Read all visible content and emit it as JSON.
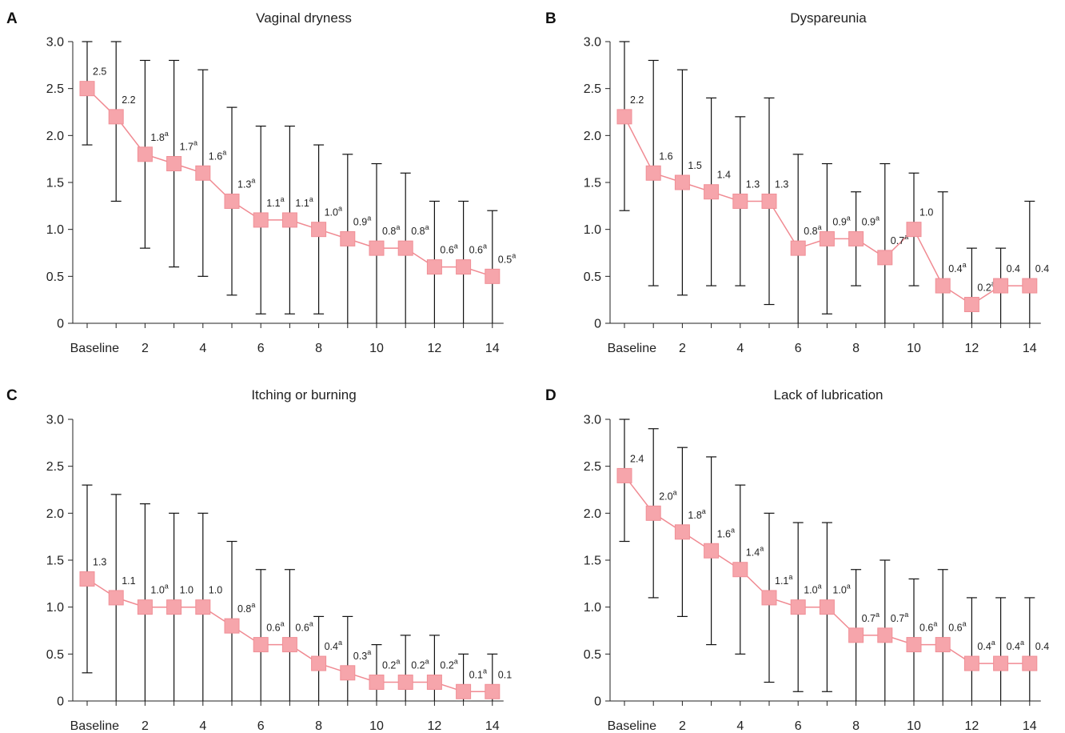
{
  "colors": {
    "marker_fill": "#f6a5ab",
    "line": "#f08a92",
    "error_bar": "#111111"
  },
  "chart_data": [
    {
      "type": "line",
      "letter": "A",
      "title": "Vaginal dryness",
      "x": [
        "Baseline",
        1,
        2,
        3,
        4,
        5,
        6,
        7,
        8,
        9,
        10,
        11,
        12,
        13,
        14
      ],
      "xticks": [
        {
          "x": "Baseline",
          "label": "Baseline"
        },
        {
          "x": 2,
          "label": "2"
        },
        {
          "x": 4,
          "label": "4"
        },
        {
          "x": 6,
          "label": "6"
        },
        {
          "x": 8,
          "label": "8"
        },
        {
          "x": 10,
          "label": "10"
        },
        {
          "x": 12,
          "label": "12"
        },
        {
          "x": 14,
          "label": "14"
        }
      ],
      "yticks": [
        "0",
        "0.5",
        "1.0",
        "1.5",
        "2.0",
        "2.5",
        "3.0"
      ],
      "ylim": [
        0,
        3.0
      ],
      "series": [
        {
          "values": [
            2.5,
            2.2,
            1.8,
            1.7,
            1.6,
            1.3,
            1.1,
            1.1,
            1.0,
            0.9,
            0.8,
            0.8,
            0.6,
            0.6,
            0.5
          ],
          "upper": [
            3.0,
            3.0,
            2.8,
            2.8,
            2.7,
            2.3,
            2.1,
            2.1,
            1.9,
            1.8,
            1.7,
            1.6,
            1.3,
            1.3,
            1.2
          ],
          "lower": [
            1.9,
            1.3,
            0.8,
            0.6,
            0.5,
            0.3,
            0.1,
            0.1,
            0.1,
            0.0,
            0.0,
            0.0,
            0.0,
            0.0,
            0.0
          ],
          "labels": [
            "2.5",
            "2.2",
            "1.8",
            "1.7",
            "1.6",
            "1.3",
            "1.1",
            "1.1",
            "1.0",
            "0.9",
            "0.8",
            "0.8",
            "0.6",
            "0.6",
            "0.5"
          ],
          "superscripts": [
            "",
            "",
            "a",
            "a",
            "a",
            "a",
            "a",
            "a",
            "a",
            "a",
            "a",
            "a",
            "a",
            "a",
            "a"
          ]
        }
      ]
    },
    {
      "type": "line",
      "letter": "B",
      "title": "Dyspareunia",
      "x": [
        "Baseline",
        1,
        2,
        3,
        4,
        5,
        6,
        7,
        8,
        9,
        10,
        11,
        12,
        13,
        14
      ],
      "xticks": [
        {
          "x": "Baseline",
          "label": "Baseline"
        },
        {
          "x": 2,
          "label": "2"
        },
        {
          "x": 4,
          "label": "4"
        },
        {
          "x": 6,
          "label": "6"
        },
        {
          "x": 8,
          "label": "8"
        },
        {
          "x": 10,
          "label": "10"
        },
        {
          "x": 12,
          "label": "12"
        },
        {
          "x": 14,
          "label": "14"
        }
      ],
      "yticks": [
        "0",
        "0.5",
        "1.0",
        "1.5",
        "2.0",
        "2.5",
        "3.0"
      ],
      "ylim": [
        0,
        3.0
      ],
      "series": [
        {
          "values": [
            2.2,
            1.6,
            1.5,
            1.4,
            1.3,
            1.3,
            0.8,
            0.9,
            0.9,
            0.7,
            1.0,
            0.4,
            0.2,
            0.4,
            0.4
          ],
          "upper": [
            3.0,
            2.8,
            2.7,
            2.4,
            2.2,
            2.4,
            1.8,
            1.7,
            1.4,
            1.7,
            1.6,
            1.4,
            0.8,
            0.8,
            1.3
          ],
          "lower": [
            1.2,
            0.4,
            0.3,
            0.4,
            0.4,
            0.2,
            0.0,
            0.1,
            0.4,
            0.0,
            0.4,
            0.0,
            0.0,
            0.0,
            0.0
          ],
          "labels": [
            "2.2",
            "1.6",
            "1.5",
            "1.4",
            "1.3",
            "1.3",
            "0.8",
            "0.9",
            "0.9",
            "0.7",
            "1.0",
            "0.4",
            "0.2",
            "0.4",
            "0.4"
          ],
          "superscripts": [
            "",
            "",
            "",
            "",
            "",
            "",
            "a",
            "a",
            "a",
            "a",
            "",
            "a",
            "a",
            "",
            ""
          ]
        }
      ]
    },
    {
      "type": "line",
      "letter": "C",
      "title": "Itching or burning",
      "x": [
        "Baseline",
        1,
        2,
        3,
        4,
        5,
        6,
        7,
        8,
        9,
        10,
        11,
        12,
        13,
        14
      ],
      "xticks": [
        {
          "x": "Baseline",
          "label": "Baseline"
        },
        {
          "x": 2,
          "label": "2"
        },
        {
          "x": 4,
          "label": "4"
        },
        {
          "x": 6,
          "label": "6"
        },
        {
          "x": 8,
          "label": "8"
        },
        {
          "x": 10,
          "label": "10"
        },
        {
          "x": 12,
          "label": "12"
        },
        {
          "x": 14,
          "label": "14"
        }
      ],
      "yticks": [
        "0",
        "0.5",
        "1.0",
        "1.5",
        "2.0",
        "2.5",
        "3.0"
      ],
      "ylim": [
        0,
        3.0
      ],
      "series": [
        {
          "values": [
            1.3,
            1.1,
            1.0,
            1.0,
            1.0,
            0.8,
            0.6,
            0.6,
            0.4,
            0.3,
            0.2,
            0.2,
            0.2,
            0.1,
            0.1
          ],
          "upper": [
            2.3,
            2.2,
            2.1,
            2.0,
            2.0,
            1.7,
            1.4,
            1.4,
            0.9,
            0.9,
            0.6,
            0.7,
            0.7,
            0.5,
            0.5
          ],
          "lower": [
            0.3,
            0.0,
            0.0,
            0.0,
            0.0,
            0.0,
            0.0,
            0.0,
            0.0,
            0.0,
            0.0,
            0.0,
            0.0,
            0.0,
            0.0
          ],
          "labels": [
            "1.3",
            "1.1",
            "1.0",
            "1.0",
            "1.0",
            "0.8",
            "0.6",
            "0.6",
            "0.4",
            "0.3",
            "0.2",
            "0.2",
            "0.2",
            "0.1",
            "0.1"
          ],
          "superscripts": [
            "",
            "",
            "a",
            "",
            "",
            "a",
            "a",
            "a",
            "a",
            "a",
            "a",
            "a",
            "a",
            "a",
            ""
          ]
        }
      ]
    },
    {
      "type": "line",
      "letter": "D",
      "title": "Lack of lubrication",
      "x": [
        "Baseline",
        1,
        2,
        3,
        4,
        5,
        6,
        7,
        8,
        9,
        10,
        11,
        12,
        13,
        14
      ],
      "xticks": [
        {
          "x": "Baseline",
          "label": "Baseline"
        },
        {
          "x": 2,
          "label": "2"
        },
        {
          "x": 4,
          "label": "4"
        },
        {
          "x": 6,
          "label": "6"
        },
        {
          "x": 8,
          "label": "8"
        },
        {
          "x": 10,
          "label": "10"
        },
        {
          "x": 12,
          "label": "12"
        },
        {
          "x": 14,
          "label": "14"
        }
      ],
      "yticks": [
        "0",
        "0.5",
        "1.0",
        "1.5",
        "2.0",
        "2.5",
        "3.0"
      ],
      "ylim": [
        0,
        3.0
      ],
      "series": [
        {
          "values": [
            2.4,
            2.0,
            1.8,
            1.6,
            1.4,
            1.1,
            1.0,
            1.0,
            0.7,
            0.7,
            0.6,
            0.6,
            0.4,
            0.4,
            0.4
          ],
          "upper": [
            3.0,
            2.9,
            2.7,
            2.6,
            2.3,
            2.0,
            1.9,
            1.9,
            1.4,
            1.5,
            1.3,
            1.4,
            1.1,
            1.1,
            1.1
          ],
          "lower": [
            1.7,
            1.1,
            0.9,
            0.6,
            0.5,
            0.2,
            0.1,
            0.1,
            0.0,
            0.0,
            0.0,
            0.0,
            0.0,
            0.0,
            0.0
          ],
          "labels": [
            "2.4",
            "2.0",
            "1.8",
            "1.6",
            "1.4",
            "1.1",
            "1.0",
            "1.0",
            "0.7",
            "0.7",
            "0.6",
            "0.6",
            "0.4",
            "0.4",
            "0.4"
          ],
          "superscripts": [
            "",
            "a",
            "a",
            "a",
            "a",
            "a",
            "a",
            "a",
            "a",
            "a",
            "a",
            "a",
            "a",
            "a",
            ""
          ]
        }
      ]
    }
  ]
}
